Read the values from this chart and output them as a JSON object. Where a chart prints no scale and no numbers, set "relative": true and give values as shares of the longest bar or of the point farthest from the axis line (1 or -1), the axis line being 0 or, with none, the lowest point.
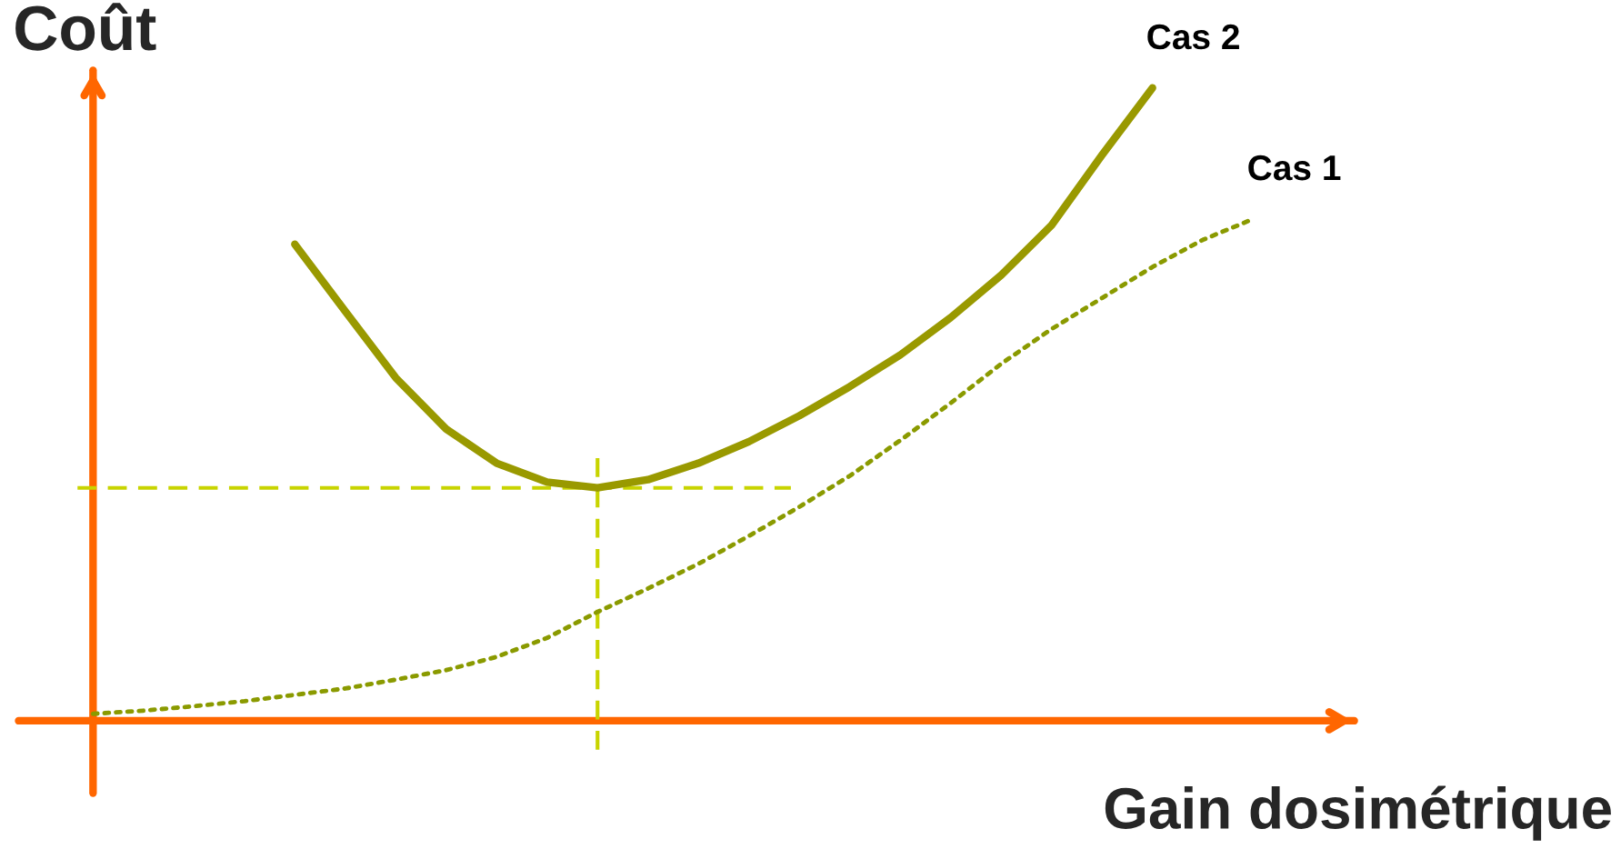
{
  "chart_data": {
    "type": "line",
    "relative": true,
    "xlabel": "Gain dosimétrique",
    "ylabel": "Coût",
    "categories": [
      null,
      null,
      null,
      null,
      null,
      null,
      null,
      null,
      null,
      null,
      null,
      null,
      null,
      null,
      null,
      null,
      null,
      null,
      null,
      null,
      null,
      null,
      null,
      null,
      null
    ],
    "series": [
      {
        "name": "Cas 2",
        "color": "#999900",
        "line_style": "solid",
        "values": [
          null,
          null,
          null,
          null,
          0.753,
          0.647,
          0.542,
          0.461,
          0.407,
          0.377,
          0.368,
          0.381,
          0.407,
          0.441,
          0.482,
          0.528,
          0.578,
          0.637,
          0.704,
          0.783,
          0.894,
          1.0,
          null,
          null,
          null
        ]
      },
      {
        "name": "Cas 1",
        "color": "#8a9a00",
        "line_style": "dotted",
        "values": [
          0.011,
          0.016,
          0.023,
          0.031,
          0.041,
          0.051,
          0.065,
          0.08,
          0.101,
          0.131,
          0.172,
          0.209,
          0.248,
          0.292,
          0.338,
          0.387,
          0.443,
          0.502,
          0.564,
          0.619,
          0.668,
          0.717,
          0.76,
          0.793,
          null
        ]
      }
    ],
    "ref_lines": [
      {
        "axis": "y",
        "value": 0.368,
        "color": "#c8d400",
        "line_style": "dashed"
      }
    ],
    "legend": false,
    "marker": "none"
  }
}
